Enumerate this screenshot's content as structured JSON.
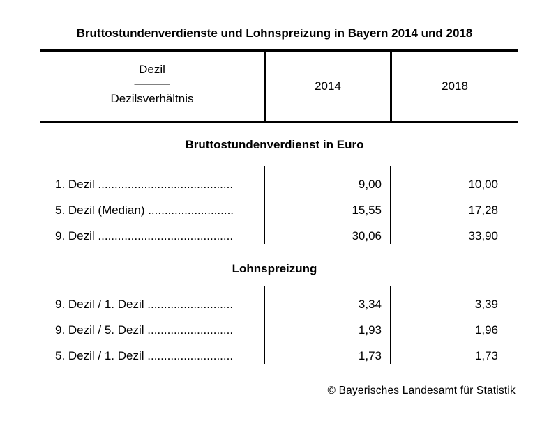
{
  "title": "Bruttostundenverdienste und Lohnspreizung in Bayern 2014 und 2018",
  "header": {
    "col1_line1": "Dezil",
    "col1_sep": "―――",
    "col1_line2": "Dezilsverhältnis",
    "col2": "2014",
    "col3": "2018"
  },
  "sections": [
    {
      "heading": "Bruttostundenverdienst in Euro",
      "rows": [
        {
          "label": "1. Dezil .........................................",
          "v2014": "9,00",
          "v2018": "10,00"
        },
        {
          "label": "5. Dezil (Median) ..........................",
          "v2014": "15,55",
          "v2018": "17,28"
        },
        {
          "label": "9. Dezil .........................................",
          "v2014": "30,06",
          "v2018": "33,90"
        }
      ]
    },
    {
      "heading": "Lohnspreizung",
      "rows": [
        {
          "label": "9. Dezil / 1. Dezil ..........................",
          "v2014": "3,34",
          "v2018": "3,39"
        },
        {
          "label": "9. Dezil / 5. Dezil ..........................",
          "v2014": "1,93",
          "v2018": "1,96"
        },
        {
          "label": "5. Dezil / 1. Dezil ..........................",
          "v2014": "1,73",
          "v2018": "1,73"
        }
      ]
    }
  ],
  "footer": "© Bayerisches Landesamt für Statistik"
}
